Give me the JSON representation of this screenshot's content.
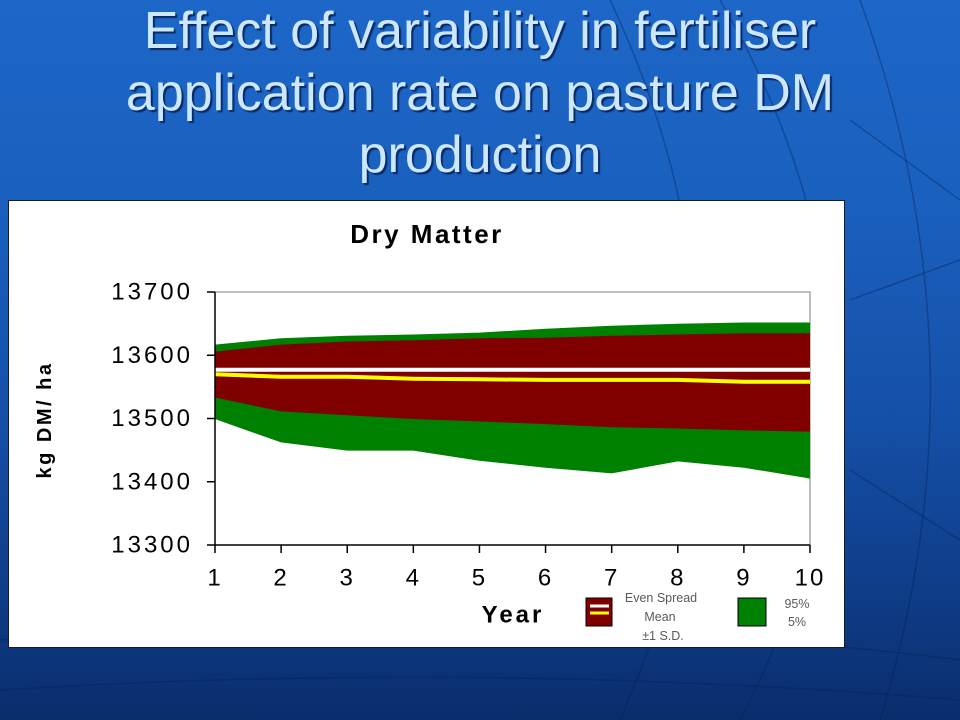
{
  "slide": {
    "title_lines": [
      "Effect of variability in fertiliser",
      "application rate on pasture DM",
      "production"
    ]
  },
  "chart_data": {
    "type": "area",
    "title": "Dry Matter",
    "xlabel": "Year",
    "ylabel": "kg DM/ ha",
    "x": [
      1,
      2,
      3,
      4,
      5,
      6,
      7,
      8,
      9,
      10
    ],
    "ylim": [
      13300,
      13700
    ],
    "yticks": [
      13300,
      13400,
      13500,
      13600,
      13700
    ],
    "grid": false,
    "legend_position": "bottom-right",
    "bands": [
      {
        "names": [
          "95%",
          "5%"
        ],
        "upper": [
          13616,
          13626,
          13630,
          13632,
          13635,
          13641,
          13646,
          13649,
          13651,
          13651
        ],
        "lower": [
          13500,
          13463,
          13450,
          13450,
          13434,
          13423,
          13414,
          13433,
          13423,
          13406
        ],
        "color": "#008000"
      },
      {
        "names": [
          "±1 S.D."
        ],
        "upper": [
          13605,
          13616,
          13621,
          13623,
          13626,
          13627,
          13630,
          13632,
          13634,
          13634
        ],
        "lower": [
          13534,
          13512,
          13506,
          13500,
          13496,
          13492,
          13487,
          13485,
          13482,
          13480
        ],
        "color": "#800000"
      }
    ],
    "lines": [
      {
        "name": "Even Spread",
        "values": [
          13577,
          13577,
          13577,
          13577,
          13577,
          13577,
          13577,
          13577,
          13577,
          13577
        ],
        "color": "#ffffff"
      },
      {
        "name": "Mean",
        "values": [
          13570,
          13566,
          13566,
          13563,
          13562,
          13561,
          13561,
          13561,
          13558,
          13558
        ],
        "color": "#ffff00"
      }
    ]
  }
}
